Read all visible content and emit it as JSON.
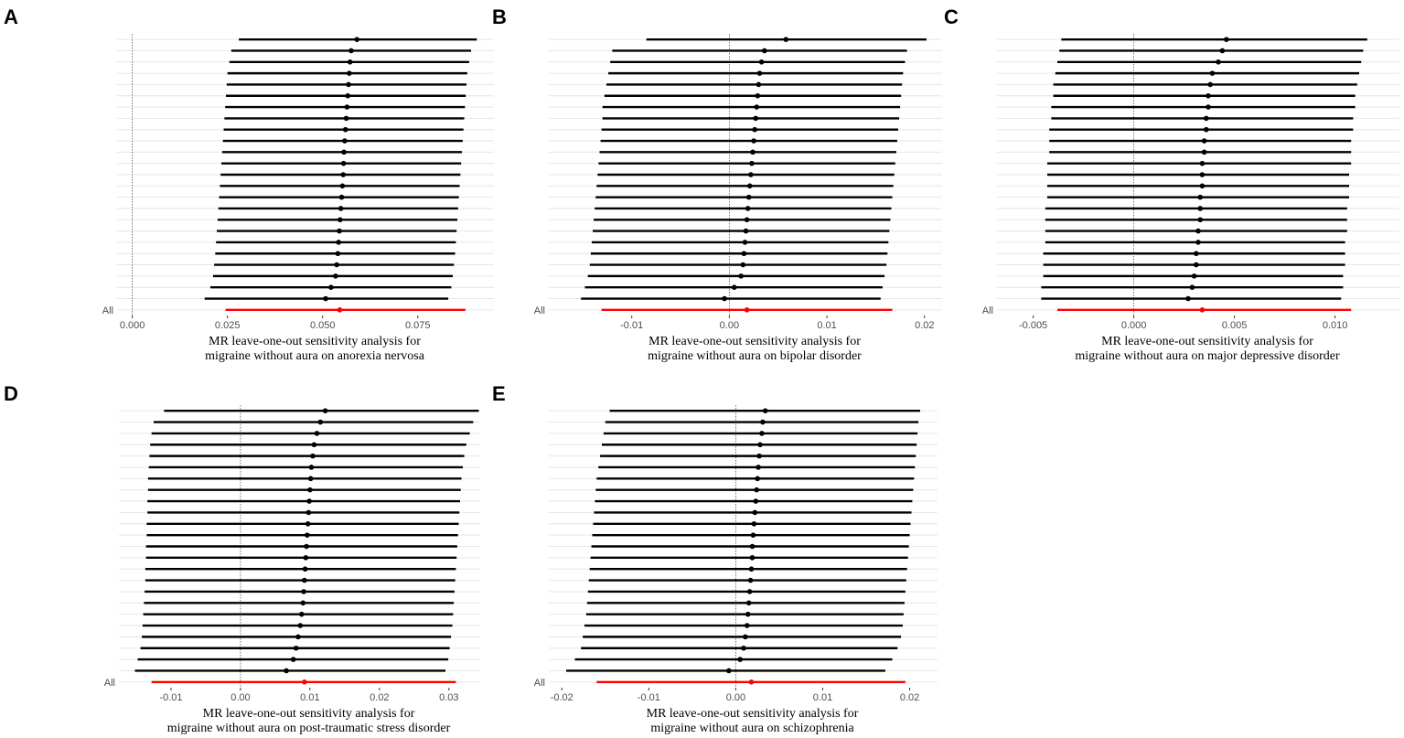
{
  "chart_data": [
    {
      "type": "forest",
      "panel": "A",
      "xlabel": [
        "MR leave-one-out sensitivity analysis for",
        "migraine without aura on anorexia nervosa"
      ],
      "categories": [
        null,
        null,
        null,
        null,
        null,
        null,
        null,
        null,
        null,
        null,
        null,
        null,
        null,
        null,
        null,
        null,
        null,
        null,
        null,
        null,
        null,
        null,
        null,
        null,
        "All"
      ],
      "values": [
        0.059,
        0.0575,
        0.0572,
        0.057,
        0.0568,
        0.0566,
        0.0564,
        0.0562,
        0.056,
        0.0558,
        0.0556,
        0.0555,
        0.0554,
        0.0552,
        0.055,
        0.0548,
        0.0546,
        0.0544,
        0.0542,
        0.054,
        0.0537,
        0.0534,
        0.0522,
        0.0508,
        0.0545
      ],
      "lower": [
        0.028,
        0.026,
        0.0255,
        0.025,
        0.0248,
        0.0246,
        0.0244,
        0.0242,
        0.024,
        0.0238,
        0.0236,
        0.0234,
        0.0232,
        0.023,
        0.0228,
        0.0226,
        0.0224,
        0.0222,
        0.022,
        0.0218,
        0.0215,
        0.0212,
        0.0205,
        0.019,
        0.0245
      ],
      "upper": [
        0.0905,
        0.089,
        0.0885,
        0.088,
        0.0878,
        0.0876,
        0.0874,
        0.0872,
        0.087,
        0.0868,
        0.0866,
        0.0864,
        0.0862,
        0.086,
        0.0858,
        0.0856,
        0.0854,
        0.0852,
        0.085,
        0.0848,
        0.0845,
        0.0842,
        0.0838,
        0.083,
        0.0875
      ],
      "xlim": [
        -0.004,
        0.095
      ],
      "xticks": [
        {
          "value": 0,
          "label": "0.000"
        },
        {
          "value": 0.025,
          "label": "0.025"
        },
        {
          "value": 0.05,
          "label": "0.050"
        },
        {
          "value": 0.075,
          "label": "0.075"
        }
      ],
      "reference": 0,
      "color": "#000000",
      "summary_color": "#ff0000"
    },
    {
      "type": "forest",
      "panel": "B",
      "xlabel": [
        "MR leave-one-out sensitivity analysis for",
        "migraine without aura on bipolar disorder"
      ],
      "categories": [
        null,
        null,
        null,
        null,
        null,
        null,
        null,
        null,
        null,
        null,
        null,
        null,
        null,
        null,
        null,
        null,
        null,
        null,
        null,
        null,
        null,
        null,
        null,
        null,
        "All"
      ],
      "values": [
        0.0058,
        0.0036,
        0.0033,
        0.0031,
        0.003,
        0.0029,
        0.0028,
        0.0027,
        0.0026,
        0.0025,
        0.0024,
        0.0023,
        0.0022,
        0.0021,
        0.002,
        0.0019,
        0.0018,
        0.0017,
        0.0016,
        0.0015,
        0.0014,
        0.0012,
        0.0005,
        -0.0005,
        0.0018
      ],
      "lower": [
        -0.0085,
        -0.012,
        -0.0122,
        -0.0124,
        -0.0126,
        -0.0128,
        -0.013,
        -0.013,
        -0.0131,
        -0.0132,
        -0.0133,
        -0.0134,
        -0.0135,
        -0.0136,
        -0.0137,
        -0.0138,
        -0.0139,
        -0.014,
        -0.0141,
        -0.0142,
        -0.0143,
        -0.0145,
        -0.0148,
        -0.0152,
        -0.0131
      ],
      "upper": [
        0.0202,
        0.0182,
        0.018,
        0.0178,
        0.0177,
        0.0176,
        0.0175,
        0.0174,
        0.0173,
        0.0172,
        0.0171,
        0.017,
        0.0169,
        0.0168,
        0.0167,
        0.0166,
        0.0165,
        0.0164,
        0.0163,
        0.0162,
        0.0161,
        0.0159,
        0.0157,
        0.0155,
        0.0167
      ],
      "xlim": [
        -0.0185,
        0.0218
      ],
      "xticks": [
        -0.01,
        {
          "value": 0,
          "label": "0.00"
        },
        0.01,
        0.02
      ],
      "reference": 0,
      "color": "#000000",
      "summary_color": "#ff0000"
    },
    {
      "type": "forest",
      "panel": "C",
      "xlabel": [
        "MR leave-one-out sensitivity analysis for",
        "migraine without aura on major depressive disorder"
      ],
      "categories": [
        null,
        null,
        null,
        null,
        null,
        null,
        null,
        null,
        null,
        null,
        null,
        null,
        null,
        null,
        null,
        null,
        null,
        null,
        null,
        null,
        null,
        null,
        null,
        null,
        "All"
      ],
      "values": [
        0.0046,
        0.0044,
        0.0042,
        0.0039,
        0.0038,
        0.0037,
        0.0037,
        0.0036,
        0.0036,
        0.0035,
        0.0035,
        0.0034,
        0.0034,
        0.0034,
        0.0033,
        0.0033,
        0.0033,
        0.0032,
        0.0032,
        0.0031,
        0.0031,
        0.003,
        0.0029,
        0.0027,
        0.0034
      ],
      "lower": [
        -0.0036,
        -0.0037,
        -0.0038,
        -0.0039,
        -0.004,
        -0.004,
        -0.0041,
        -0.0041,
        -0.0042,
        -0.0042,
        -0.0042,
        -0.0043,
        -0.0043,
        -0.0043,
        -0.0043,
        -0.0044,
        -0.0044,
        -0.0044,
        -0.0044,
        -0.0045,
        -0.0045,
        -0.0045,
        -0.0046,
        -0.0046,
        -0.0038
      ],
      "upper": [
        0.0116,
        0.0114,
        0.0113,
        0.0112,
        0.0111,
        0.011,
        0.011,
        0.0109,
        0.0109,
        0.0108,
        0.0108,
        0.0108,
        0.0107,
        0.0107,
        0.0107,
        0.0106,
        0.0106,
        0.0106,
        0.0105,
        0.0105,
        0.0105,
        0.0104,
        0.0104,
        0.0103,
        0.0108
      ],
      "xlim": [
        -0.0068,
        0.0132
      ],
      "xticks": [
        -0.005,
        {
          "value": 0,
          "label": "0.000"
        },
        0.005,
        {
          "value": 0.01,
          "label": "0.010"
        }
      ],
      "reference": 0,
      "color": "#000000",
      "summary_color": "#ff0000"
    },
    {
      "type": "forest",
      "panel": "D",
      "xlabel": [
        "MR leave-one-out sensitivity analysis for",
        "migraine without aura on post-traumatic stress disorder"
      ],
      "categories": [
        null,
        null,
        null,
        null,
        null,
        null,
        null,
        null,
        null,
        null,
        null,
        null,
        null,
        null,
        null,
        null,
        null,
        null,
        null,
        null,
        null,
        null,
        null,
        null,
        "All"
      ],
      "values": [
        0.0122,
        0.0115,
        0.011,
        0.0106,
        0.0104,
        0.0102,
        0.0101,
        0.01,
        0.0099,
        0.0098,
        0.0097,
        0.0096,
        0.0095,
        0.0094,
        0.0093,
        0.0092,
        0.0091,
        0.009,
        0.0088,
        0.0086,
        0.0083,
        0.008,
        0.0076,
        0.0066,
        0.0092
      ],
      "lower": [
        -0.011,
        -0.0125,
        -0.0128,
        -0.013,
        -0.0131,
        -0.0132,
        -0.0133,
        -0.0133,
        -0.0134,
        -0.0134,
        -0.0135,
        -0.0135,
        -0.0136,
        -0.0136,
        -0.0137,
        -0.0137,
        -0.0138,
        -0.0139,
        -0.014,
        -0.0141,
        -0.0142,
        -0.0144,
        -0.0148,
        -0.0152,
        -0.0128
      ],
      "upper": [
        0.0343,
        0.0335,
        0.033,
        0.0325,
        0.0322,
        0.032,
        0.0318,
        0.0317,
        0.0316,
        0.0315,
        0.0314,
        0.0313,
        0.0312,
        0.0311,
        0.031,
        0.0309,
        0.0308,
        0.0307,
        0.0306,
        0.0305,
        0.0303,
        0.0301,
        0.0299,
        0.0295,
        0.031
      ],
      "xlim": [
        -0.0175,
        0.0345
      ],
      "xticks": [
        -0.01,
        {
          "value": 0,
          "label": "0.00"
        },
        0.01,
        0.02,
        0.03
      ],
      "reference": 0,
      "color": "#000000",
      "summary_color": "#ff0000"
    },
    {
      "type": "forest",
      "panel": "E",
      "xlabel": [
        "MR leave-one-out sensitivity analysis for",
        "migraine without aura on schizophrenia"
      ],
      "categories": [
        null,
        null,
        null,
        null,
        null,
        null,
        null,
        null,
        null,
        null,
        null,
        null,
        null,
        null,
        null,
        null,
        null,
        null,
        null,
        null,
        null,
        null,
        null,
        null,
        "All"
      ],
      "values": [
        0.0034,
        0.0031,
        0.003,
        0.0028,
        0.0027,
        0.0026,
        0.0025,
        0.0024,
        0.0023,
        0.0022,
        0.0021,
        0.002,
        0.0019,
        0.0019,
        0.0018,
        0.0017,
        0.0016,
        0.0015,
        0.0014,
        0.0013,
        0.0011,
        0.0009,
        0.0005,
        -0.0008,
        0.0018
      ],
      "lower": [
        -0.0145,
        -0.015,
        -0.0152,
        -0.0154,
        -0.0156,
        -0.0158,
        -0.016,
        -0.0161,
        -0.0162,
        -0.0163,
        -0.0164,
        -0.0165,
        -0.0166,
        -0.0167,
        -0.0168,
        -0.0169,
        -0.017,
        -0.0171,
        -0.0172,
        -0.0174,
        -0.0176,
        -0.0178,
        -0.0185,
        -0.0195,
        -0.016
      ],
      "upper": [
        0.0212,
        0.021,
        0.0209,
        0.0208,
        0.0207,
        0.0206,
        0.0205,
        0.0204,
        0.0203,
        0.0202,
        0.0201,
        0.02,
        0.0199,
        0.0198,
        0.0197,
        0.0196,
        0.0195,
        0.0194,
        0.0193,
        0.0192,
        0.019,
        0.0186,
        0.018,
        0.0172,
        0.0195
      ],
      "xlim": [
        -0.0215,
        0.0232
      ],
      "xticks": [
        -0.02,
        -0.01,
        {
          "value": 0,
          "label": "0.00"
        },
        0.01,
        0.02
      ],
      "reference": 0,
      "color": "#000000",
      "summary_color": "#ff0000"
    }
  ]
}
